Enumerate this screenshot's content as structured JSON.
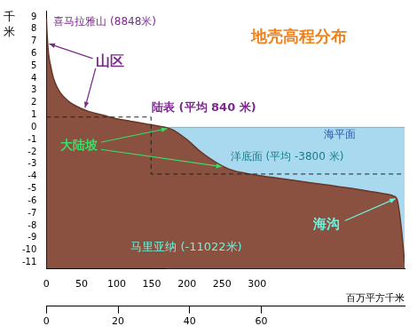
{
  "chart_data": {
    "type": "area",
    "title": "地壳高程分布",
    "title_color": "#f0801a",
    "y_label": "千米",
    "x_label": "百万平方千米",
    "x": [
      0,
      1,
      3,
      6,
      10,
      15,
      20,
      30,
      40,
      60,
      80,
      100,
      120,
      140,
      150,
      160,
      170,
      180,
      200,
      220,
      240,
      260,
      280,
      300,
      350,
      400,
      450,
      480,
      495,
      500,
      505,
      510
    ],
    "values": [
      8.848,
      7.5,
      6,
      5,
      4,
      3.3,
      2.8,
      2.2,
      1.8,
      1.3,
      1.0,
      0.7,
      0.5,
      0.3,
      0.2,
      0.1,
      0,
      -0.2,
      -1,
      -2,
      -2.8,
      -3.4,
      -3.7,
      -3.9,
      -4.3,
      -4.7,
      -5.1,
      -5.4,
      -5.6,
      -6,
      -8,
      -11.022
    ],
    "color": "#8a5040",
    "xlim": [
      0,
      510
    ],
    "xticks": [
      0,
      50,
      100,
      150,
      200,
      250,
      300
    ],
    "x2lim": [
      0,
      100
    ],
    "x2ticks": [
      0,
      20,
      40,
      60
    ],
    "ylim": [
      -11.5,
      9.5
    ],
    "yticks": [
      -11,
      -10,
      -9,
      -8,
      -7,
      -6,
      -5,
      -4,
      -3,
      -2,
      -1,
      0,
      1,
      2,
      3,
      4,
      5,
      6,
      7,
      8,
      9
    ],
    "grid": false,
    "legend": false,
    "sea_level": {
      "y": 0,
      "label": "海平面",
      "color": "#a9d9ef"
    },
    "reference_lines": [
      {
        "label": "陆表 (平均 840 米)",
        "y": 0.84,
        "x": [
          0,
          149
        ],
        "line_style": "dashed"
      },
      {
        "label": "洋底面 (平均 -3800 米)",
        "y": -3.8,
        "x": [
          149,
          510
        ],
        "line_style": "dashed"
      }
    ],
    "annotations": [
      {
        "text": "喜马拉雅山 (8848米)",
        "color": "#7b2a8c"
      },
      {
        "text": "山区",
        "color": "#7b2a8c"
      },
      {
        "text": "大陆坡",
        "color": "#3ddc6a"
      },
      {
        "text": "海沟",
        "color": "#6ff2dc"
      },
      {
        "text": "马里亚纳 (-11022米)",
        "color": "#6ff2dc"
      }
    ]
  }
}
